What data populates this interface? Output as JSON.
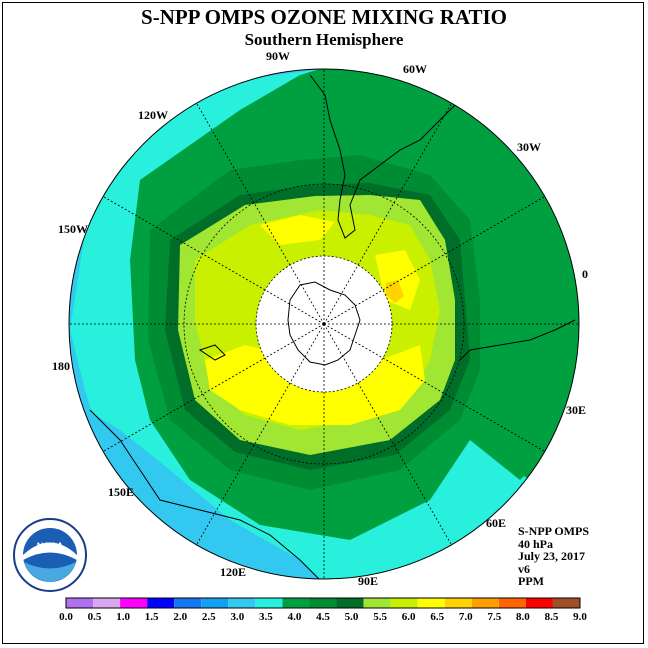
{
  "title": "S-NPP OMPS OZONE MIXING RATIO",
  "subtitle": "Southern Hemisphere",
  "longitude_labels": [
    "90W",
    "60W",
    "30W",
    "0",
    "30E",
    "60E",
    "90E",
    "120E",
    "150E",
    "180",
    "150W",
    "120W"
  ],
  "logo": {
    "text": "NOAA",
    "ring_text": "NATIONAL OCEANIC AND ATMOSPHERIC ADMINISTRATION · U.S. DEPARTMENT OF COMMERCE"
  },
  "info": {
    "product": "S-NPP OMPS",
    "level": "40 hPa",
    "date": "July 23, 2017",
    "version": "v6",
    "units": "PPM"
  },
  "colorbar": {
    "ticks": [
      "0.0",
      "0.5",
      "1.0",
      "1.5",
      "2.0",
      "2.5",
      "3.0",
      "3.5",
      "4.0",
      "4.5",
      "5.0",
      "5.5",
      "6.0",
      "6.5",
      "7.0",
      "7.5",
      "8.0",
      "8.5",
      "9.0"
    ],
    "colors": [
      "#b070f0",
      "#d8a8f0",
      "#ff00ff",
      "#0000ff",
      "#1478f0",
      "#14a0f0",
      "#32c8f0",
      "#28f0dc",
      "#00a040",
      "#008c32",
      "#006e28",
      "#a0e632",
      "#c8f000",
      "#ffff00",
      "#ffd200",
      "#ffa000",
      "#ff6400",
      "#ff0000",
      "#a05028"
    ]
  }
}
